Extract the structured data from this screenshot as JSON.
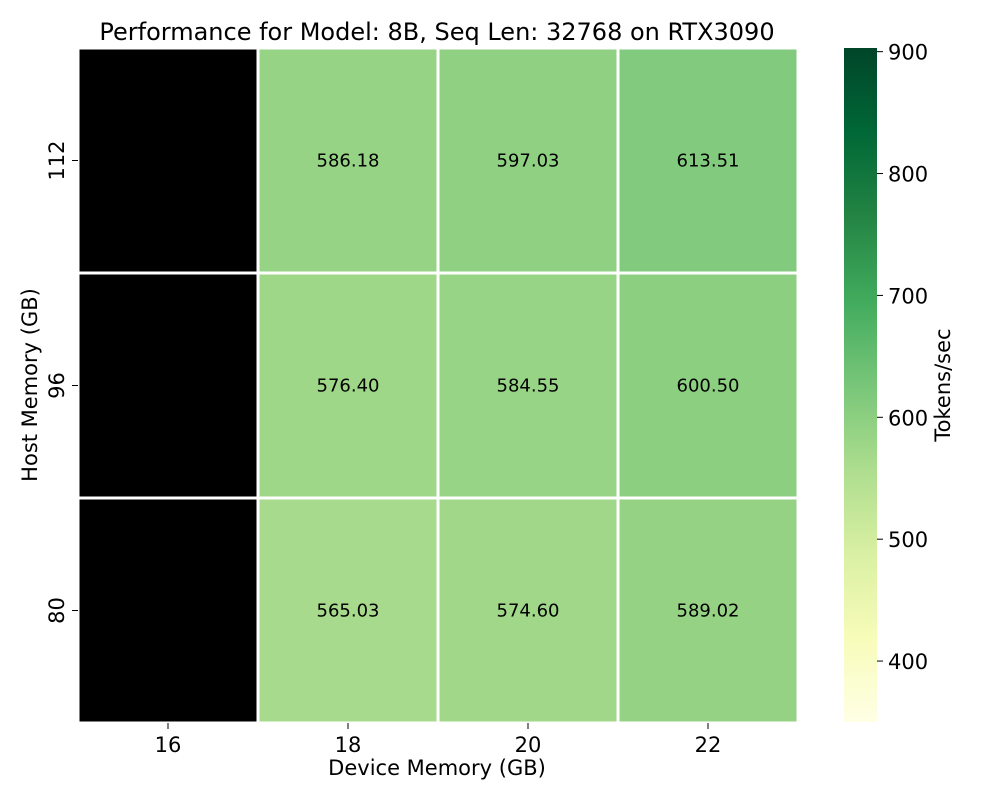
{
  "chart_data": {
    "type": "heatmap",
    "title": "Performance for Model: 8B, Seq Len: 32768 on RTX3090",
    "xlabel": "Device Memory (GB)",
    "ylabel": "Host Memory (GB)",
    "x_categories": [
      "16",
      "18",
      "20",
      "22"
    ],
    "y_categories": [
      "112",
      "96",
      "80"
    ],
    "values": [
      [
        null,
        586.18,
        597.03,
        613.51
      ],
      [
        null,
        576.4,
        584.55,
        600.5
      ],
      [
        null,
        565.03,
        574.6,
        589.02
      ]
    ],
    "cell_labels": [
      [
        "",
        "586.18",
        "597.03",
        "613.51"
      ],
      [
        "",
        "576.40",
        "584.55",
        "600.50"
      ],
      [
        "",
        "565.03",
        "574.60",
        "589.02"
      ]
    ],
    "missing_color": "#000000",
    "grid_line_color": "#ffffff",
    "colorbar": {
      "label": "Tokens/sec",
      "range": [
        350,
        903
      ],
      "ticks": [
        "400",
        "500",
        "600",
        "700",
        "800",
        "900"
      ],
      "colormap": "YlGn",
      "placement": "right"
    }
  }
}
